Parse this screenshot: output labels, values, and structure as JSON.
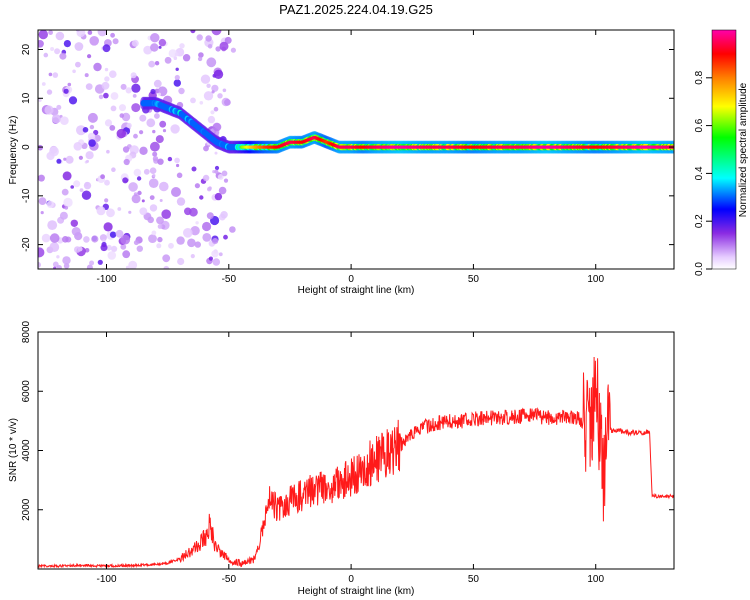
{
  "figure_title": "PAZ1.2025.224.04.19.G25",
  "chart_data": [
    {
      "type": "heatmap",
      "title": "PAZ1.2025.224.04.19.G25",
      "xlabel": "Height of straight line (km)",
      "ylabel": "Frequency (Hz)",
      "xlim": [
        -128,
        132
      ],
      "ylim": [
        -25,
        24
      ],
      "x_ticks": [
        -100,
        -50,
        0,
        50,
        100
      ],
      "y_ticks": [
        -20,
        -10,
        0,
        10,
        20
      ],
      "grid": false,
      "colorbar": {
        "label": "Normalized spectral amplitude",
        "range": [
          0,
          1
        ],
        "ticks": [
          0.0,
          0.2,
          0.4,
          0.6,
          0.8
        ],
        "colormap": [
          "#ffffff",
          "#e6ccff",
          "#8a2be2",
          "#0000ff",
          "#00ffff",
          "#00ff00",
          "#ffff00",
          "#ff7f00",
          "#ff0000",
          "#ff00ff"
        ]
      },
      "ridge": {
        "x": [
          -85,
          -80,
          -75,
          -70,
          -65,
          -60,
          -55,
          -50,
          -45,
          -40,
          -35,
          -30,
          -25,
          -20,
          -15,
          -10,
          -5,
          0,
          5,
          10,
          20,
          30,
          40,
          50,
          60,
          70,
          80,
          90,
          100,
          110,
          120,
          132
        ],
        "y": [
          9,
          9,
          8,
          7,
          5,
          3,
          1,
          0,
          0,
          0,
          0,
          0,
          1,
          1,
          2,
          1,
          0,
          0,
          0,
          0,
          0,
          0,
          0,
          0,
          0,
          0,
          0,
          0,
          0,
          0,
          0,
          0
        ],
        "amplitude": [
          0.25,
          0.4,
          0.45,
          0.5,
          0.4,
          0.35,
          0.25,
          0.45,
          0.6,
          0.75,
          0.85,
          0.9,
          0.95,
          0.9,
          0.95,
          0.85,
          0.95,
          0.95,
          0.9,
          0.95,
          1.0,
          0.95,
          0.95,
          0.9,
          0.95,
          0.95,
          1.0,
          0.95,
          0.9,
          0.95,
          1.0,
          0.95
        ]
      }
    },
    {
      "type": "line",
      "xlabel": "Height of straight line (km)",
      "ylabel": "SNR (10 * v/v)",
      "xlim": [
        -128,
        132
      ],
      "ylim": [
        0,
        8000
      ],
      "x_ticks": [
        -100,
        -50,
        0,
        50,
        100
      ],
      "y_ticks": [
        2000,
        4000,
        6000,
        8000
      ],
      "grid": false,
      "color": "#ff0000",
      "series": [
        {
          "x": [
            -128,
            -120,
            -110,
            -100,
            -90,
            -80,
            -75,
            -70,
            -65,
            -60,
            -58,
            -55,
            -52,
            -50,
            -45,
            -40,
            -38,
            -35,
            -33,
            -30,
            -25,
            -20,
            -15,
            -10,
            -5,
            0,
            5,
            10,
            15,
            20,
            25,
            30,
            35,
            40,
            45,
            50,
            55,
            60,
            65,
            70,
            75,
            80,
            85,
            90,
            95,
            98,
            100,
            103,
            105,
            110,
            115,
            120,
            122,
            123,
            125,
            130,
            132
          ],
          "y": [
            100,
            100,
            120,
            100,
            120,
            150,
            200,
            350,
            600,
            1000,
            1400,
            700,
            500,
            300,
            200,
            300,
            700,
            1800,
            2400,
            2000,
            2300,
            2500,
            2700,
            2800,
            2900,
            3100,
            3400,
            3700,
            3900,
            4200,
            4500,
            4800,
            4900,
            5000,
            5000,
            5050,
            5100,
            5100,
            5150,
            5150,
            5200,
            5100,
            5100,
            5150,
            5000,
            4800,
            6500,
            3000,
            4700,
            4650,
            4600,
            4600,
            4650,
            2500,
            2450,
            2450,
            2450
          ]
        }
      ]
    }
  ]
}
